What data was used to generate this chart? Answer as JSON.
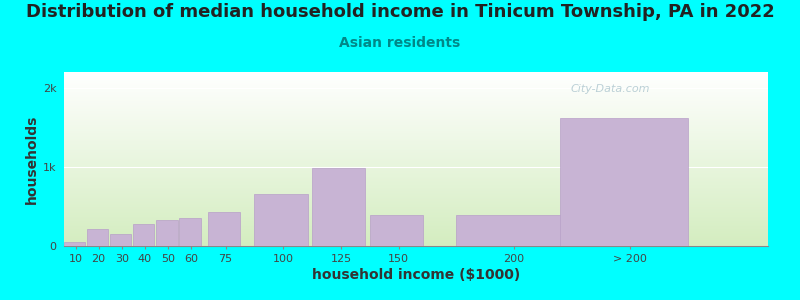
{
  "title": "Distribution of median household income in Tinicum Township, PA in 2022",
  "subtitle": "Asian residents",
  "xlabel": "household income ($1000)",
  "ylabel": "households",
  "background_color": "#00FFFF",
  "bar_color": "#c8b4d4",
  "bar_edge_color": "#b8a0c8",
  "categories": [
    "10",
    "20",
    "30",
    "40",
    "50",
    "60",
    "75",
    "100",
    "125",
    "150",
    "200",
    "> 200"
  ],
  "x_positions": [
    10,
    20,
    30,
    40,
    50,
    60,
    75,
    100,
    125,
    150,
    200,
    250
  ],
  "x_widths": [
    10,
    10,
    10,
    10,
    10,
    10,
    15,
    25,
    25,
    25,
    50,
    60
  ],
  "values": [
    55,
    210,
    155,
    275,
    330,
    360,
    430,
    660,
    980,
    390,
    390,
    1620
  ],
  "ylim": [
    0,
    2200
  ],
  "yticks": [
    0,
    1000,
    2000
  ],
  "ytick_labels": [
    "0",
    "1k",
    "2k"
  ],
  "xlim": [
    5,
    310
  ],
  "xtick_positions": [
    10,
    20,
    30,
    40,
    50,
    60,
    75,
    100,
    125,
    150,
    200,
    250
  ],
  "xtick_labels": [
    "10",
    "20",
    "30",
    "40",
    "50",
    "60",
    "75",
    "100",
    "125",
    "150",
    "200",
    "> 200"
  ],
  "watermark": "City-Data.com",
  "title_fontsize": 13,
  "subtitle_fontsize": 10,
  "axis_label_fontsize": 10,
  "tick_fontsize": 8
}
